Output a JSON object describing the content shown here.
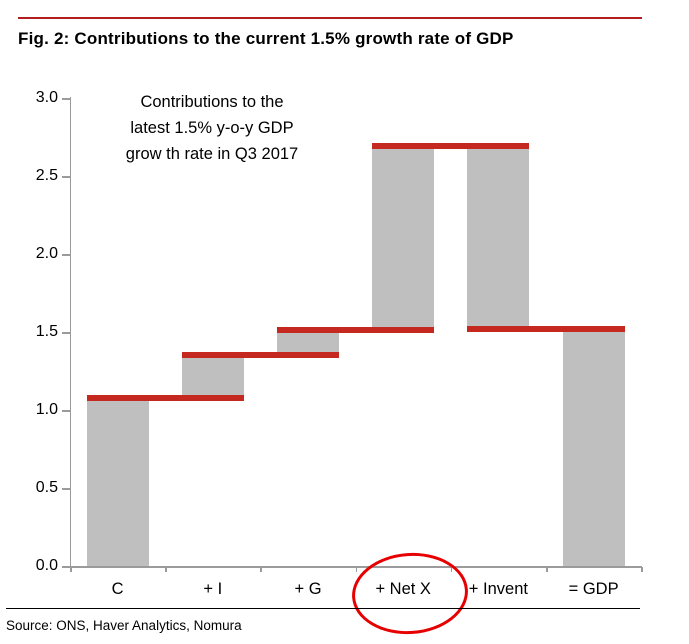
{
  "figure": {
    "title": "Fig. 2: Contributions to the current 1.5% growth rate of GDP",
    "source": "Source: ONS, Haver Analytics, Nomura"
  },
  "annotation": {
    "lines": [
      "Contributions to the",
      "latest 1.5% y-o-y GDP",
      "grow th rate in Q3 2017"
    ]
  },
  "colors": {
    "bar_gray": "#bfbfbf",
    "level_line_red": "#c4281f",
    "title_rule_red": "#b21d1d",
    "ellipse_red": "#e60000",
    "axis_gray": "#9b9b9b"
  },
  "chart_data": {
    "type": "bar",
    "subtype": "waterfall",
    "categories": [
      "C",
      "+ I",
      "+ G",
      "+ Net X",
      "+ Invent",
      "= GDP"
    ],
    "bars": [
      {
        "label": "C",
        "from": 0,
        "to": 1.08
      },
      {
        "label": "+ I",
        "from": 1.08,
        "to": 1.35
      },
      {
        "label": "+ G",
        "from": 1.35,
        "to": 1.51
      },
      {
        "label": "+ Net X",
        "from": 1.51,
        "to": 2.69
      },
      {
        "label": "+ Invent",
        "from": 2.69,
        "to": 1.52
      },
      {
        "label": "= GDP",
        "from": 0,
        "to": 1.52
      }
    ],
    "level_lines": [
      {
        "value": 1.08,
        "from_cat": 0,
        "to_cat": 1
      },
      {
        "value": 1.35,
        "from_cat": 1,
        "to_cat": 2
      },
      {
        "value": 1.51,
        "from_cat": 2,
        "to_cat": 3
      },
      {
        "value": 2.69,
        "from_cat": 3,
        "to_cat": 4
      },
      {
        "value": 1.52,
        "from_cat": 4,
        "to_cat": 5
      }
    ],
    "contributions": [
      {
        "category": "C",
        "value": 1.08
      },
      {
        "category": "+ I",
        "value": 0.27
      },
      {
        "category": "+ G",
        "value": 0.16
      },
      {
        "category": "+ Net X",
        "value": 1.18
      },
      {
        "category": "+ Invent",
        "value": -1.17
      },
      {
        "category": "= GDP",
        "value": 1.52
      }
    ],
    "title": "Fig. 2: Contributions to the current 1.5% growth rate of GDP",
    "xlabel": "",
    "ylabel": "",
    "ylim": [
      0.0,
      3.0
    ],
    "y_ticks": [
      "0.0",
      "0.5",
      "1.0",
      "1.5",
      "2.0",
      "2.5",
      "3.0"
    ],
    "grid": false,
    "legend": false,
    "annotation_text": "Contributions to the latest 1.5% y-o-y GDP grow th rate in Q3 2017",
    "circled_category": "+ Net X"
  }
}
